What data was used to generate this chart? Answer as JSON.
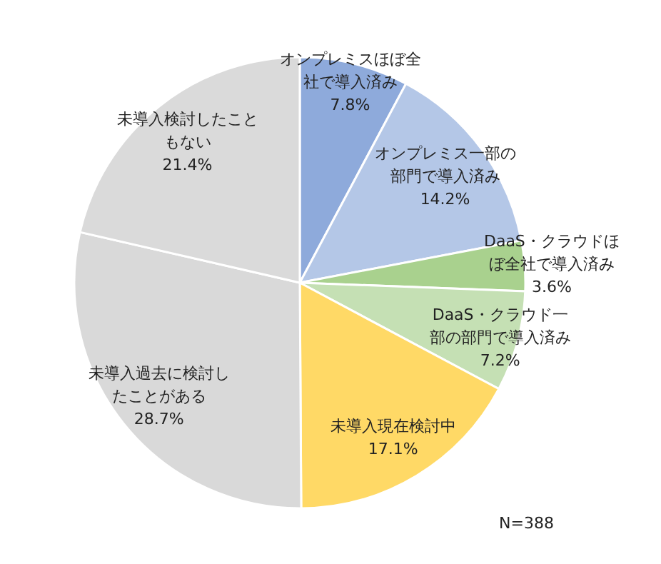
{
  "chart_data": {
    "type": "pie",
    "categories": [
      "オンプレミスほぼ全社で導入済み",
      "オンプレミス一部の部門で導入済み",
      "DaaS・クラウドほぼ全社で導入済み",
      "DaaS・クラウド一部の部門で導入済み",
      "未導入現在検討中",
      "未導入過去に検討したことがある",
      "未導入検討したこともない"
    ],
    "values": [
      7.8,
      14.2,
      3.6,
      7.2,
      17.1,
      28.7,
      21.4
    ],
    "colors": [
      "#8eaadb",
      "#b4c7e7",
      "#a9d18e",
      "#c5e0b4",
      "#ffd966",
      "#d9d9d9",
      "#dadada"
    ],
    "value_labels": [
      "7.8%",
      "14.2%",
      "3.6%",
      "7.2%",
      "17.1%",
      "28.7%",
      "21.4%"
    ],
    "annotations": [
      "N=388"
    ]
  }
}
